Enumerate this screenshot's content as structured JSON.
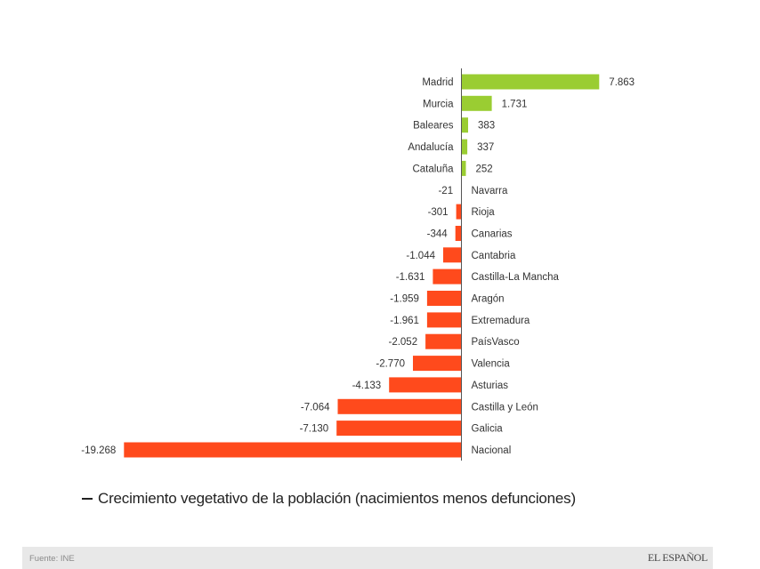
{
  "chart_data": {
    "type": "bar",
    "orientation": "horizontal",
    "title": "",
    "xlabel": "",
    "ylabel": "",
    "categories": [
      "Madrid",
      "Murcia",
      "Baleares",
      "Andalucía",
      "Cataluña",
      "Navarra",
      "Rioja",
      "Canarias",
      "Cantabria",
      "Castilla-La Mancha",
      "Aragón",
      "Extremadura",
      "PaísVasco",
      "Valencia",
      "Asturias",
      "Castilla y León",
      "Galicia",
      "Nacional"
    ],
    "values": [
      7863,
      1731,
      383,
      337,
      252,
      -21,
      -301,
      -344,
      -1044,
      -1631,
      -1959,
      -1961,
      -2052,
      -2770,
      -4133,
      -7064,
      -7130,
      -19268
    ],
    "value_labels": [
      "7.863",
      "1.731",
      "383",
      "337",
      "252",
      "-21",
      "-301",
      "-344",
      "-1.044",
      "-1.631",
      "-1.959",
      "-1.961",
      "-2.052",
      "-2.770",
      "-4.133",
      "-7.064",
      "-7.130",
      "-19.268"
    ],
    "xlim": [
      -19268,
      7863
    ],
    "grid": false,
    "colors": {
      "positive": "#9acd32",
      "negative": "#ff4a1c",
      "axis": "#555555"
    },
    "legend": "bottom-left"
  },
  "legend": {
    "label": "Crecimiento vegetativo de la población (nacimientos menos defunciones)"
  },
  "footer": {
    "source": "Fuente: INE",
    "brand": "EL ESPAÑOL"
  }
}
